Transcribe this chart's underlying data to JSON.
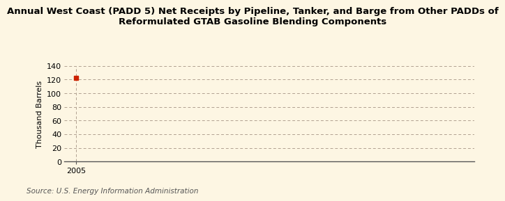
{
  "title_line1": "Annual West Coast (PADD 5) Net Receipts by Pipeline, Tanker, and Barge from Other PADDs of",
  "title_line2": "Reformulated GTAB Gasoline Blending Components",
  "ylabel": "Thousand Barrels",
  "source": "Source: U.S. Energy Information Administration",
  "x_data": [
    2005
  ],
  "y_data": [
    122
  ],
  "marker_color": "#cc2200",
  "xlim": [
    2004.4,
    2025
  ],
  "ylim": [
    0,
    140
  ],
  "yticks": [
    0,
    20,
    40,
    60,
    80,
    100,
    120,
    140
  ],
  "xticks": [
    2005
  ],
  "background_color": "#fdf6e3",
  "grid_color": "#b0a090",
  "axis_line_color": "#555555",
  "title_fontsize": 9.5,
  "ylabel_fontsize": 8,
  "tick_fontsize": 8,
  "source_fontsize": 7.5
}
